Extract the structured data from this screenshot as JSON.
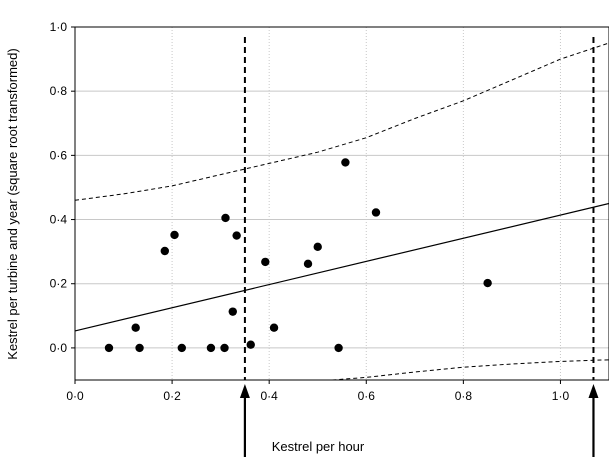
{
  "chart_data": {
    "type": "scatter",
    "title": "",
    "xlabel": "Kestrel per hour",
    "ylabel": "Kestrel per turbine and year (square root transformed)",
    "xlim": [
      0.0,
      1.1
    ],
    "ylim": [
      -0.1,
      1.0
    ],
    "x_ticks": [
      {
        "value": 0.0,
        "label": "0·0"
      },
      {
        "value": 0.2,
        "label": "0·2"
      },
      {
        "value": 0.4,
        "label": "0·4"
      },
      {
        "value": 0.6,
        "label": "0·6"
      },
      {
        "value": 0.8,
        "label": "0·8"
      },
      {
        "value": 1.0,
        "label": "1·0"
      }
    ],
    "y_ticks": [
      {
        "value": 0.0,
        "label": "0·0"
      },
      {
        "value": 0.2,
        "label": "0·2"
      },
      {
        "value": 0.4,
        "label": "0·4"
      },
      {
        "value": 0.6,
        "label": "0·6"
      },
      {
        "value": 0.8,
        "label": "0·8"
      },
      {
        "value": 1.0,
        "label": "1·0"
      }
    ],
    "grid": true,
    "points": [
      {
        "x": 0.07,
        "y": 0.0
      },
      {
        "x": 0.125,
        "y": 0.063
      },
      {
        "x": 0.133,
        "y": 0.0
      },
      {
        "x": 0.185,
        "y": 0.302
      },
      {
        "x": 0.205,
        "y": 0.352
      },
      {
        "x": 0.22,
        "y": 0.0
      },
      {
        "x": 0.28,
        "y": 0.0
      },
      {
        "x": 0.308,
        "y": 0.0
      },
      {
        "x": 0.31,
        "y": 0.405
      },
      {
        "x": 0.325,
        "y": 0.113
      },
      {
        "x": 0.333,
        "y": 0.35
      },
      {
        "x": 0.362,
        "y": 0.01
      },
      {
        "x": 0.392,
        "y": 0.268
      },
      {
        "x": 0.41,
        "y": 0.063
      },
      {
        "x": 0.48,
        "y": 0.262
      },
      {
        "x": 0.5,
        "y": 0.315
      },
      {
        "x": 0.543,
        "y": 0.0
      },
      {
        "x": 0.557,
        "y": 0.578
      },
      {
        "x": 0.62,
        "y": 0.422
      },
      {
        "x": 0.85,
        "y": 0.202
      }
    ],
    "fit_line": {
      "x": [
        0.0,
        1.1
      ],
      "y": [
        0.053,
        0.45
      ]
    },
    "upper_band": {
      "x": [
        0.0,
        0.1,
        0.2,
        0.3,
        0.4,
        0.5,
        0.6,
        0.7,
        0.8,
        0.9,
        1.0,
        1.1
      ],
      "y": [
        0.46,
        0.48,
        0.505,
        0.54,
        0.575,
        0.61,
        0.655,
        0.715,
        0.77,
        0.835,
        0.9,
        0.95
      ]
    },
    "lower_band": {
      "x": [
        0.53,
        0.6,
        0.7,
        0.8,
        0.9,
        1.0,
        1.1
      ],
      "y": [
        -0.1,
        -0.092,
        -0.075,
        -0.06,
        -0.05,
        -0.042,
        -0.037
      ]
    },
    "vertical_markers": [
      0.35,
      1.068
    ]
  }
}
